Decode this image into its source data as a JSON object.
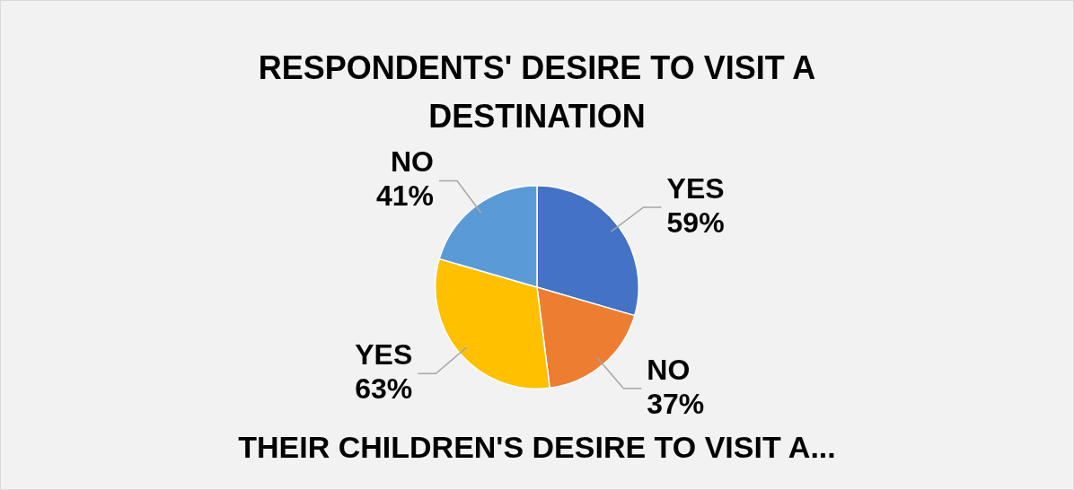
{
  "chart_data": {
    "type": "pie",
    "title": "RESPONDENTS' DESIRE TO VISIT A DESTINATION",
    "categories": [
      "YES",
      "NO",
      "YES",
      "NO"
    ],
    "values": [
      59,
      37,
      63,
      41
    ],
    "colors": [
      "#4472c4",
      "#ed7d31",
      "#ffc000",
      "#5b9bd5"
    ],
    "value_labels": [
      "59%",
      "37%",
      "63%",
      "41%"
    ],
    "annotations": [
      "THEIR CHILDREN'S DESIRE TO VISIT A..."
    ],
    "legend": false
  }
}
